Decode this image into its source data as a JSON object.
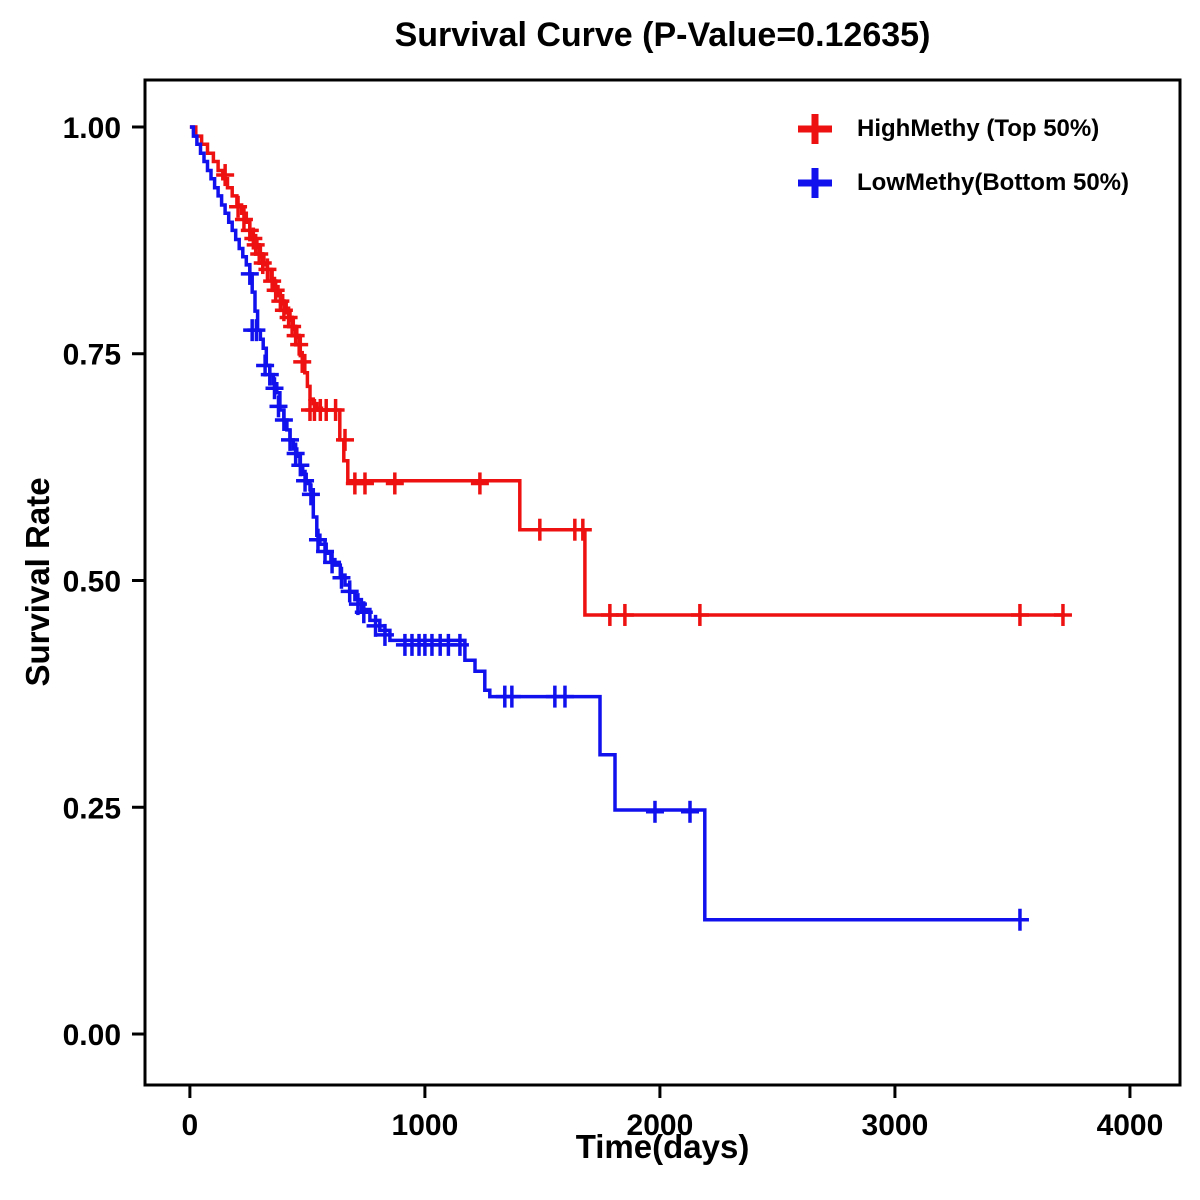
{
  "title": "Survival Curve (P-Value=0.12635)",
  "legend": [
    {
      "label": "HighMethy (Top 50%)",
      "color": "#ee1111"
    },
    {
      "label": "LowMethy(Bottom 50%)",
      "color": "#1111ee"
    }
  ],
  "chart_data": {
    "type": "line",
    "subtype": "kaplan-meier-step-curve",
    "title": "Survival Curve (P-Value=0.12635)",
    "p_value": 0.12635,
    "xlabel": "Time(days)",
    "ylabel": "Survival Rate",
    "xlim": [
      -191,
      4213
    ],
    "ylim": [
      -0.0562,
      1.0518
    ],
    "xticks": [
      0,
      1000,
      2000,
      3000,
      4000
    ],
    "yticks": [
      0.0,
      0.25,
      0.5,
      0.75,
      1.0
    ],
    "grid": false,
    "legend_position": "top-right",
    "series": [
      {
        "name": "HighMethy (Top 50%)",
        "color": "#ee1111",
        "steps": [
          [
            0,
            1.0
          ],
          [
            25,
            0.99
          ],
          [
            50,
            0.981
          ],
          [
            75,
            0.971
          ],
          [
            100,
            0.962
          ],
          [
            120,
            0.952
          ],
          [
            140,
            0.943
          ],
          [
            160,
            0.933
          ],
          [
            180,
            0.924
          ],
          [
            200,
            0.914
          ],
          [
            220,
            0.905
          ],
          [
            240,
            0.895
          ],
          [
            255,
            0.886
          ],
          [
            270,
            0.876
          ],
          [
            285,
            0.867
          ],
          [
            300,
            0.857
          ],
          [
            315,
            0.848
          ],
          [
            330,
            0.843
          ],
          [
            345,
            0.833
          ],
          [
            360,
            0.824
          ],
          [
            375,
            0.814
          ],
          [
            395,
            0.805
          ],
          [
            410,
            0.795
          ],
          [
            426,
            0.787
          ],
          [
            440,
            0.777
          ],
          [
            455,
            0.768
          ],
          [
            470,
            0.748
          ],
          [
            489,
            0.729
          ],
          [
            500,
            0.714
          ],
          [
            511,
            0.7
          ],
          [
            525,
            0.695
          ],
          [
            540,
            0.69
          ],
          [
            560,
            0.688
          ],
          [
            638,
            0.655
          ],
          [
            655,
            0.632
          ],
          [
            672,
            0.61
          ],
          [
            1404,
            0.556
          ],
          [
            1681,
            0.462
          ],
          [
            3723,
            0.462
          ]
        ],
        "censors": [
          [
            150,
            0.947
          ],
          [
            205,
            0.912
          ],
          [
            230,
            0.898
          ],
          [
            255,
            0.886
          ],
          [
            270,
            0.877
          ],
          [
            280,
            0.87
          ],
          [
            295,
            0.86
          ],
          [
            310,
            0.85
          ],
          [
            330,
            0.843
          ],
          [
            350,
            0.83
          ],
          [
            365,
            0.82
          ],
          [
            385,
            0.808
          ],
          [
            400,
            0.798
          ],
          [
            420,
            0.79
          ],
          [
            435,
            0.78
          ],
          [
            450,
            0.77
          ],
          [
            465,
            0.76
          ],
          [
            478,
            0.741
          ],
          [
            511,
            0.688
          ],
          [
            530,
            0.688
          ],
          [
            555,
            0.688
          ],
          [
            580,
            0.688
          ],
          [
            620,
            0.688
          ],
          [
            660,
            0.655
          ],
          [
            702,
            0.607
          ],
          [
            745,
            0.607
          ],
          [
            872,
            0.607
          ],
          [
            1234,
            0.607
          ],
          [
            1489,
            0.556
          ],
          [
            1638,
            0.556
          ],
          [
            1672,
            0.556
          ],
          [
            1787,
            0.462
          ],
          [
            1851,
            0.462
          ],
          [
            2170,
            0.462
          ],
          [
            3532,
            0.462
          ],
          [
            3715,
            0.462
          ]
        ]
      },
      {
        "name": "LowMethy(Bottom 50%)",
        "color": "#1111ee",
        "steps": [
          [
            0,
            1.0
          ],
          [
            15,
            0.99
          ],
          [
            30,
            0.981
          ],
          [
            45,
            0.971
          ],
          [
            60,
            0.962
          ],
          [
            75,
            0.952
          ],
          [
            90,
            0.943
          ],
          [
            105,
            0.933
          ],
          [
            120,
            0.924
          ],
          [
            135,
            0.914
          ],
          [
            150,
            0.905
          ],
          [
            165,
            0.895
          ],
          [
            180,
            0.886
          ],
          [
            195,
            0.876
          ],
          [
            210,
            0.866
          ],
          [
            225,
            0.857
          ],
          [
            240,
            0.848
          ],
          [
            255,
            0.838
          ],
          [
            265,
            0.818
          ],
          [
            277,
            0.797
          ],
          [
            288,
            0.776
          ],
          [
            300,
            0.766
          ],
          [
            312,
            0.756
          ],
          [
            325,
            0.737
          ],
          [
            340,
            0.727
          ],
          [
            355,
            0.717
          ],
          [
            370,
            0.707
          ],
          [
            383,
            0.688
          ],
          [
            400,
            0.677
          ],
          [
            413,
            0.666
          ],
          [
            426,
            0.655
          ],
          [
            440,
            0.645
          ],
          [
            455,
            0.637
          ],
          [
            468,
            0.627
          ],
          [
            480,
            0.617
          ],
          [
            495,
            0.607
          ],
          [
            511,
            0.6
          ],
          [
            525,
            0.57
          ],
          [
            540,
            0.55
          ],
          [
            553,
            0.54
          ],
          [
            580,
            0.53
          ],
          [
            600,
            0.523
          ],
          [
            617,
            0.517
          ],
          [
            640,
            0.506
          ],
          [
            660,
            0.495
          ],
          [
            680,
            0.487
          ],
          [
            702,
            0.479
          ],
          [
            730,
            0.468
          ],
          [
            766,
            0.456
          ],
          [
            808,
            0.445
          ],
          [
            851,
            0.434
          ],
          [
            1170,
            0.412
          ],
          [
            1213,
            0.4
          ],
          [
            1255,
            0.379
          ],
          [
            1276,
            0.372
          ],
          [
            1745,
            0.308
          ],
          [
            1809,
            0.247
          ],
          [
            2191,
            0.126
          ],
          [
            3553,
            0.126
          ]
        ],
        "censors": [
          [
            255,
            0.838
          ],
          [
            265,
            0.776
          ],
          [
            283,
            0.776
          ],
          [
            320,
            0.737
          ],
          [
            340,
            0.727
          ],
          [
            360,
            0.712
          ],
          [
            377,
            0.692
          ],
          [
            400,
            0.677
          ],
          [
            426,
            0.655
          ],
          [
            450,
            0.64
          ],
          [
            470,
            0.627
          ],
          [
            490,
            0.61
          ],
          [
            515,
            0.595
          ],
          [
            545,
            0.545
          ],
          [
            575,
            0.532
          ],
          [
            605,
            0.52
          ],
          [
            645,
            0.503
          ],
          [
            680,
            0.488
          ],
          [
            715,
            0.474
          ],
          [
            740,
            0.465
          ],
          [
            790,
            0.45
          ],
          [
            830,
            0.44
          ],
          [
            915,
            0.429
          ],
          [
            945,
            0.429
          ],
          [
            975,
            0.429
          ],
          [
            1000,
            0.429
          ],
          [
            1030,
            0.429
          ],
          [
            1065,
            0.429
          ],
          [
            1100,
            0.429
          ],
          [
            1149,
            0.429
          ],
          [
            1340,
            0.372
          ],
          [
            1370,
            0.372
          ],
          [
            1553,
            0.372
          ],
          [
            1596,
            0.372
          ],
          [
            1979,
            0.245
          ],
          [
            2128,
            0.245
          ],
          [
            3532,
            0.126
          ]
        ]
      }
    ]
  }
}
